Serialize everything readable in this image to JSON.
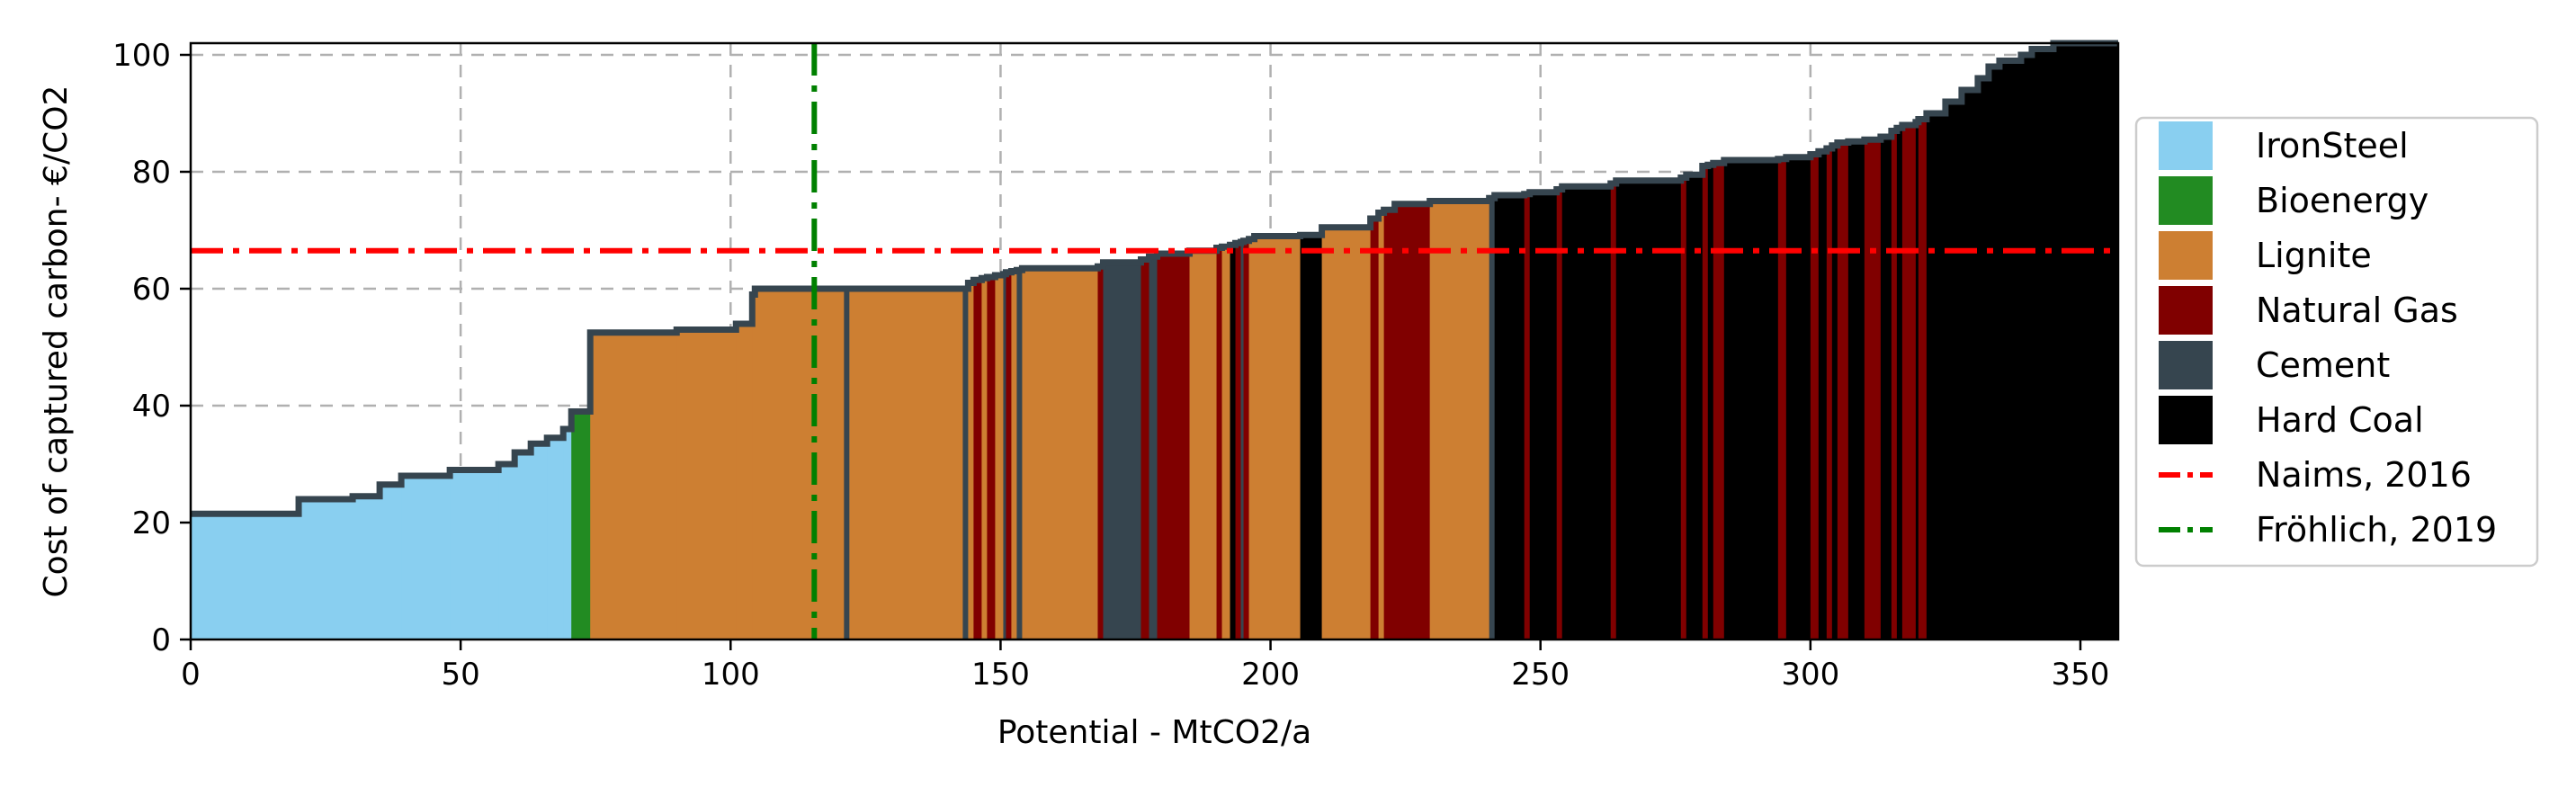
{
  "chart_data": {
    "type": "area",
    "title": "",
    "xlabel": "Potential - MtCO2/a",
    "ylabel": "Cost of captured carbon- €/CO2",
    "xlim": [
      0,
      357
    ],
    "ylim": [
      0,
      102
    ],
    "xticks": [
      "0",
      "50",
      "100",
      "150",
      "200",
      "250",
      "300",
      "350"
    ],
    "yticks": [
      "0",
      "20",
      "40",
      "60",
      "80",
      "100"
    ],
    "grid": true,
    "legend_position": "right",
    "colors": {
      "IronSteel": "#89cff0",
      "Bioenergy": "#228b22",
      "Lignite": "#cd7f32",
      "Natural Gas": "#800000",
      "Cement": "#36454f",
      "Hard Coal": "#000000",
      "curve": "#36454f",
      "naims_line": "#ff0000",
      "froehlich_line": "#008000"
    },
    "categories": [
      "IronSteel",
      "Bioenergy",
      "Lignite",
      "Natural Gas",
      "Cement",
      "Hard Coal"
    ],
    "reference_lines": [
      {
        "name": "Naims, 2016",
        "orientation": "horizontal",
        "value": 66.5
      },
      {
        "name": "Fröhlich, 2019",
        "orientation": "vertical",
        "value": 115.5
      }
    ],
    "segments": [
      {
        "category": "IronSteel",
        "x0": 0,
        "x1": 20,
        "y": 21.5
      },
      {
        "category": "IronSteel",
        "x0": 20,
        "x1": 30,
        "y": 24
      },
      {
        "category": "IronSteel",
        "x0": 30,
        "x1": 35,
        "y": 24.5
      },
      {
        "category": "IronSteel",
        "x0": 35,
        "x1": 39,
        "y": 26.5
      },
      {
        "category": "IronSteel",
        "x0": 39,
        "x1": 48,
        "y": 28
      },
      {
        "category": "IronSteel",
        "x0": 48,
        "x1": 57,
        "y": 29
      },
      {
        "category": "IronSteel",
        "x0": 57,
        "x1": 60,
        "y": 30
      },
      {
        "category": "IronSteel",
        "x0": 60,
        "x1": 63,
        "y": 32
      },
      {
        "category": "IronSteel",
        "x0": 63,
        "x1": 66,
        "y": 33.5
      },
      {
        "category": "IronSteel",
        "x0": 66,
        "x1": 69,
        "y": 34.5
      },
      {
        "category": "IronSteel",
        "x0": 69,
        "x1": 70.5,
        "y": 36
      },
      {
        "category": "Bioenergy",
        "x0": 70.5,
        "x1": 74,
        "y": 39
      },
      {
        "category": "Lignite",
        "x0": 74,
        "x1": 90,
        "y": 52.5
      },
      {
        "category": "Lignite",
        "x0": 90,
        "x1": 101,
        "y": 53
      },
      {
        "category": "Lignite",
        "x0": 101,
        "x1": 104,
        "y": 54
      },
      {
        "category": "Lignite",
        "x0": 104,
        "x1": 104.5,
        "y": 59
      },
      {
        "category": "Lignite",
        "x0": 104.5,
        "x1": 121,
        "y": 60
      },
      {
        "category": "Cement",
        "x0": 121,
        "x1": 122,
        "y": 60
      },
      {
        "category": "Lignite",
        "x0": 122,
        "x1": 143,
        "y": 60
      },
      {
        "category": "Cement",
        "x0": 143,
        "x1": 144,
        "y": 60
      },
      {
        "category": "Lignite",
        "x0": 144,
        "x1": 145,
        "y": 61
      },
      {
        "category": "Natural Gas",
        "x0": 145,
        "x1": 146.5,
        "y": 61.5
      },
      {
        "category": "Lignite",
        "x0": 146.5,
        "x1": 147.5,
        "y": 61.8
      },
      {
        "category": "Natural Gas",
        "x0": 147.5,
        "x1": 149,
        "y": 62
      },
      {
        "category": "Lignite",
        "x0": 149,
        "x1": 150.5,
        "y": 62.3
      },
      {
        "category": "Cement",
        "x0": 150.5,
        "x1": 151,
        "y": 62.5
      },
      {
        "category": "Natural Gas",
        "x0": 151,
        "x1": 152,
        "y": 62.8
      },
      {
        "category": "Lignite",
        "x0": 152,
        "x1": 153,
        "y": 63
      },
      {
        "category": "Cement",
        "x0": 153,
        "x1": 154,
        "y": 63.2
      },
      {
        "category": "Lignite",
        "x0": 154,
        "x1": 168,
        "y": 63.5
      },
      {
        "category": "Natural Gas",
        "x0": 168,
        "x1": 169,
        "y": 63.8
      },
      {
        "category": "Cement",
        "x0": 169,
        "x1": 176,
        "y": 64.5
      },
      {
        "category": "Natural Gas",
        "x0": 176,
        "x1": 177.5,
        "y": 65
      },
      {
        "category": "Cement",
        "x0": 177.5,
        "x1": 179,
        "y": 65.5
      },
      {
        "category": "Natural Gas",
        "x0": 179,
        "x1": 185,
        "y": 66
      },
      {
        "category": "Lignite",
        "x0": 185,
        "x1": 190,
        "y": 66.5
      },
      {
        "category": "Natural Gas",
        "x0": 190,
        "x1": 191,
        "y": 67
      },
      {
        "category": "Lignite",
        "x0": 191,
        "x1": 192.5,
        "y": 67.2
      },
      {
        "category": "Hard Coal",
        "x0": 192.5,
        "x1": 193.5,
        "y": 67.5
      },
      {
        "category": "Natural Gas",
        "x0": 193.5,
        "x1": 194.5,
        "y": 67.8
      },
      {
        "category": "Cement",
        "x0": 194.5,
        "x1": 195,
        "y": 68
      },
      {
        "category": "Natural Gas",
        "x0": 195,
        "x1": 196,
        "y": 68.2
      },
      {
        "category": "Lignite",
        "x0": 196,
        "x1": 197,
        "y": 68.5
      },
      {
        "category": "Lignite",
        "x0": 197,
        "x1": 205.5,
        "y": 69
      },
      {
        "category": "Hard Coal",
        "x0": 205.5,
        "x1": 209.5,
        "y": 69.2
      },
      {
        "category": "Lignite",
        "x0": 209.5,
        "x1": 218.5,
        "y": 70.5
      },
      {
        "category": "Natural Gas",
        "x0": 218.5,
        "x1": 220,
        "y": 72
      },
      {
        "category": "Lignite",
        "x0": 220,
        "x1": 221,
        "y": 73
      },
      {
        "category": "Natural Gas",
        "x0": 221,
        "x1": 223,
        "y": 73.5
      },
      {
        "category": "Natural Gas",
        "x0": 223,
        "x1": 229.5,
        "y": 74.5
      },
      {
        "category": "Lignite",
        "x0": 229.5,
        "x1": 240.5,
        "y": 75
      },
      {
        "category": "Cement",
        "x0": 240.5,
        "x1": 241.5,
        "y": 75.5
      },
      {
        "category": "Hard Coal",
        "x0": 241.5,
        "x1": 247,
        "y": 76
      },
      {
        "category": "Natural Gas",
        "x0": 247,
        "x1": 248,
        "y": 76.2
      },
      {
        "category": "Hard Coal",
        "x0": 248,
        "x1": 253,
        "y": 76.5
      },
      {
        "category": "Natural Gas",
        "x0": 253,
        "x1": 254,
        "y": 77
      },
      {
        "category": "Hard Coal",
        "x0": 254,
        "x1": 263,
        "y": 77.5
      },
      {
        "category": "Natural Gas",
        "x0": 263,
        "x1": 264,
        "y": 78
      },
      {
        "category": "Hard Coal",
        "x0": 264,
        "x1": 276,
        "y": 78.5
      },
      {
        "category": "Natural Gas",
        "x0": 276,
        "x1": 277,
        "y": 79
      },
      {
        "category": "Hard Coal",
        "x0": 277,
        "x1": 280,
        "y": 79.5
      },
      {
        "category": "Natural Gas",
        "x0": 280,
        "x1": 281,
        "y": 81
      },
      {
        "category": "Hard Coal",
        "x0": 281,
        "x1": 282,
        "y": 81.2
      },
      {
        "category": "Natural Gas",
        "x0": 282,
        "x1": 284,
        "y": 81.5
      },
      {
        "category": "Hard Coal",
        "x0": 284,
        "x1": 294,
        "y": 82
      },
      {
        "category": "Natural Gas",
        "x0": 294,
        "x1": 295.5,
        "y": 82.2
      },
      {
        "category": "Hard Coal",
        "x0": 295.5,
        "x1": 300,
        "y": 82.5
      },
      {
        "category": "Natural Gas",
        "x0": 300,
        "x1": 301.5,
        "y": 83
      },
      {
        "category": "Hard Coal",
        "x0": 301.5,
        "x1": 303,
        "y": 83.5
      },
      {
        "category": "Natural Gas",
        "x0": 303,
        "x1": 304,
        "y": 84
      },
      {
        "category": "Hard Coal",
        "x0": 304,
        "x1": 305,
        "y": 84.5
      },
      {
        "category": "Natural Gas",
        "x0": 305,
        "x1": 307,
        "y": 85
      },
      {
        "category": "Hard Coal",
        "x0": 307,
        "x1": 310,
        "y": 85.2
      },
      {
        "category": "Natural Gas",
        "x0": 310,
        "x1": 313,
        "y": 85.5
      },
      {
        "category": "Hard Coal",
        "x0": 313,
        "x1": 315,
        "y": 86
      },
      {
        "category": "Natural Gas",
        "x0": 315,
        "x1": 316,
        "y": 87
      },
      {
        "category": "Hard Coal",
        "x0": 316,
        "x1": 317,
        "y": 87.5
      },
      {
        "category": "Natural Gas",
        "x0": 317,
        "x1": 319.5,
        "y": 88
      },
      {
        "category": "Hard Coal",
        "x0": 319.5,
        "x1": 320,
        "y": 88.5
      },
      {
        "category": "Natural Gas",
        "x0": 320,
        "x1": 321.5,
        "y": 89
      },
      {
        "category": "Hard Coal",
        "x0": 321.5,
        "x1": 325,
        "y": 90
      },
      {
        "category": "Hard Coal",
        "x0": 325,
        "x1": 328,
        "y": 92
      },
      {
        "category": "Hard Coal",
        "x0": 328,
        "x1": 331,
        "y": 94
      },
      {
        "category": "Hard Coal",
        "x0": 331,
        "x1": 333,
        "y": 96
      },
      {
        "category": "Hard Coal",
        "x0": 333,
        "x1": 335,
        "y": 98
      },
      {
        "category": "Hard Coal",
        "x0": 335,
        "x1": 339,
        "y": 99
      },
      {
        "category": "Hard Coal",
        "x0": 339,
        "x1": 341,
        "y": 100
      },
      {
        "category": "Hard Coal",
        "x0": 341,
        "x1": 345,
        "y": 101
      },
      {
        "category": "Hard Coal",
        "x0": 345,
        "x1": 357,
        "y": 102
      }
    ]
  }
}
